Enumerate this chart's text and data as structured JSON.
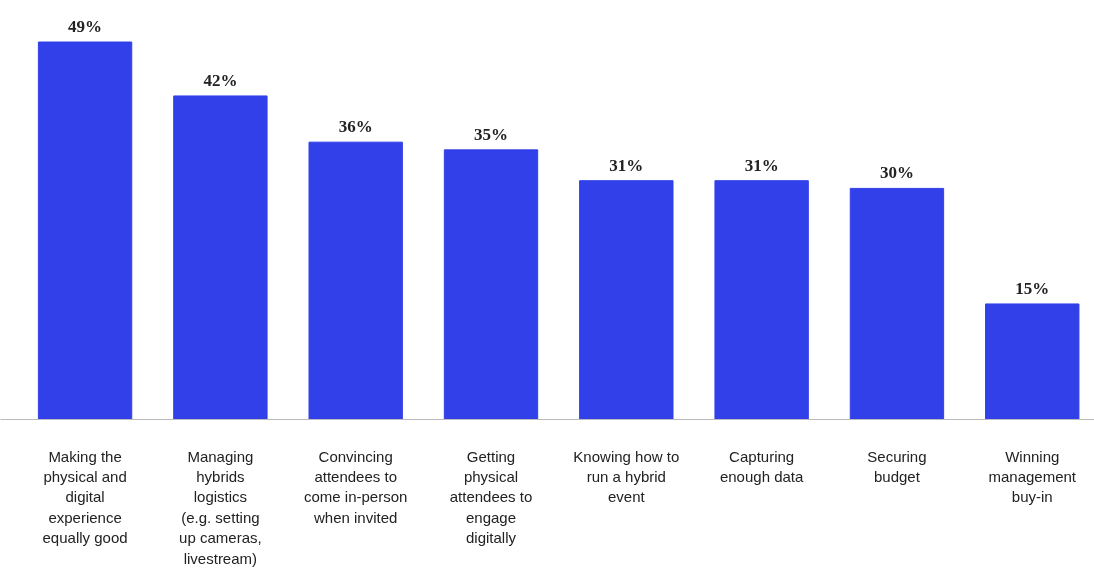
{
  "chart_data": {
    "type": "bar",
    "categories": [
      "Making the physical and digital experience equally good",
      "Managing hybrids logistics (e.g. setting up cameras, livestream)",
      "Convincing attendees to come in-person when invited",
      "Getting physical attendees to engage digitally",
      "Knowing how to run a hybrid event",
      "Capturing enough data",
      "Securing budget",
      "Winning management buy-in"
    ],
    "values": [
      49,
      42,
      36,
      35,
      31,
      31,
      30,
      15
    ],
    "value_labels": [
      "49%",
      "42%",
      "36%",
      "35%",
      "31%",
      "31%",
      "30%",
      "15%"
    ],
    "color": "#3140e8",
    "grid": false
  }
}
